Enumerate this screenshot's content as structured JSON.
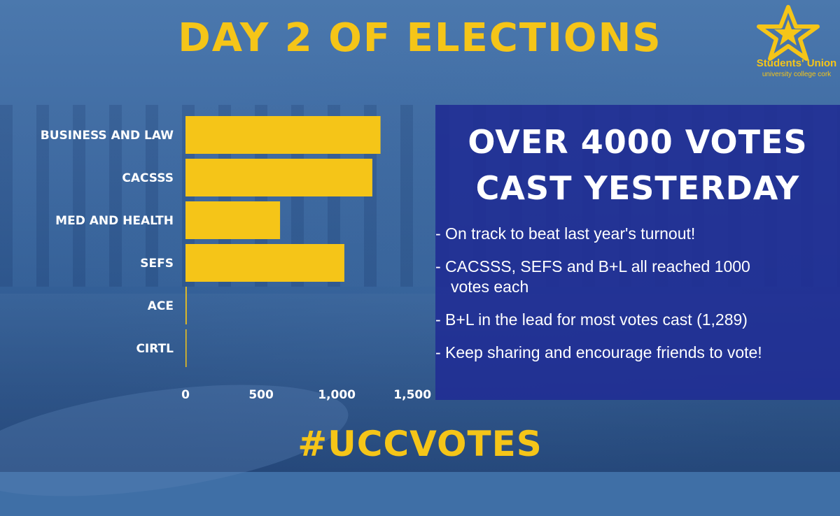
{
  "title": "DAY 2 OF ELECTIONS",
  "logo": {
    "line1": "Students' Union",
    "line2": "university college cork",
    "icon": "star-logo-icon",
    "color": "#f5c518"
  },
  "panel": {
    "heading_line1": "OVER 4000 VOTES",
    "heading_line2": "CAST YESTERDAY",
    "bullets": [
      {
        "line1": "- On track to beat last year's turnout!",
        "line2": ""
      },
      {
        "line1": "- CACSSS, SEFS and B+L all reached 1000",
        "line2": "votes each"
      },
      {
        "line1": "- B+L in the lead for most votes cast (1,289)",
        "line2": ""
      },
      {
        "line1": "- Keep sharing and encourage friends to vote!",
        "line2": ""
      }
    ]
  },
  "hashtag": "#UCCVOTES",
  "colors": {
    "accent": "#f5c518",
    "panel": "#202c94",
    "text": "#ffffff"
  },
  "chart_data": {
    "type": "bar",
    "orientation": "horizontal",
    "categories": [
      "BUSINESS AND LAW",
      "CACSSS",
      "MED AND HEALTH",
      "SEFS",
      "ACE",
      "CIRTL"
    ],
    "values": [
      1289,
      1235,
      625,
      1050,
      8,
      3
    ],
    "xticks": [
      "0",
      "500",
      "1,000",
      "1,500"
    ],
    "xtick_values": [
      0,
      500,
      1000,
      1500
    ],
    "xlim": [
      0,
      1550
    ],
    "grid": false,
    "bar_color": "#f5c518"
  }
}
